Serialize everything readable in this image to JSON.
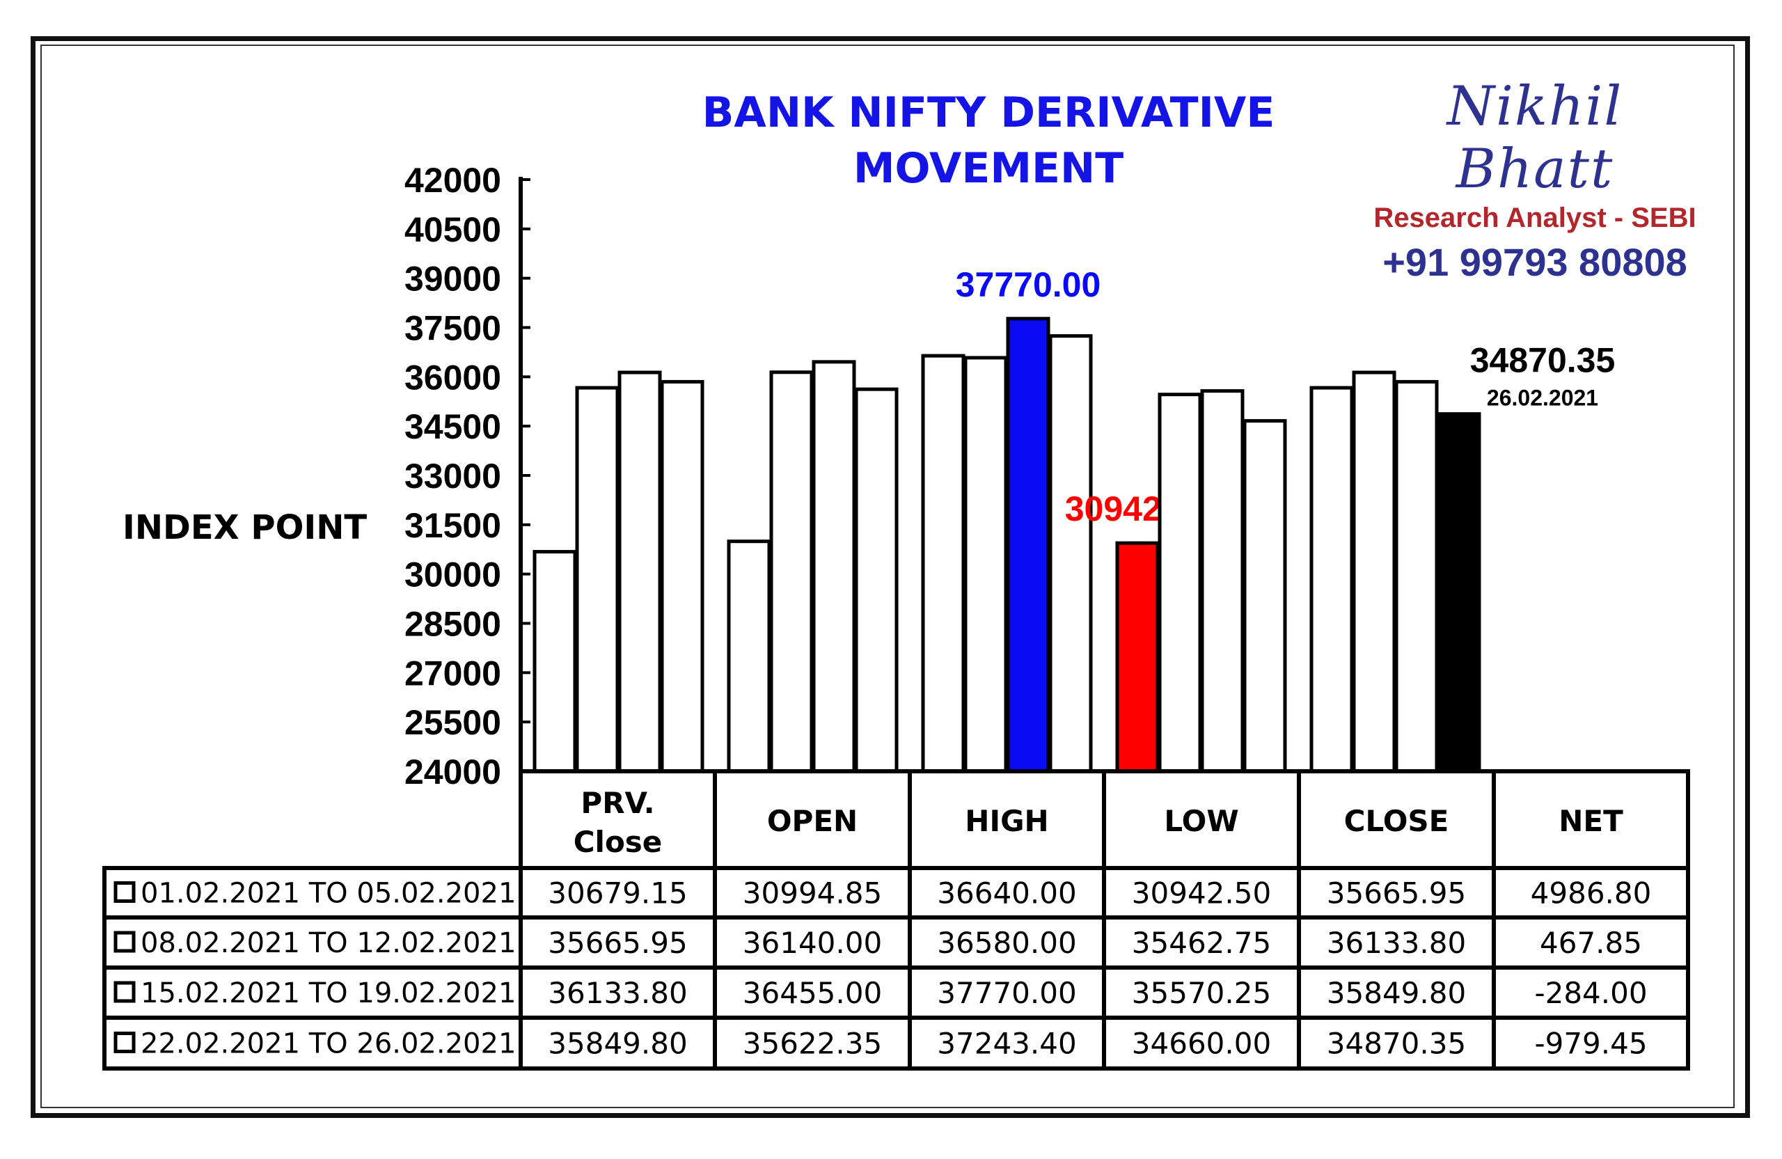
{
  "header": {
    "title_line1": "BANK NIFTY DERIVATIVE",
    "title_line2": "MOVEMENT"
  },
  "brand": {
    "name": "Nikhil Bhatt",
    "role": "Research Analyst - SEBI",
    "phone": "+91 99793 80808"
  },
  "colors": {
    "highlight_high": "#0a0af5",
    "highlight_low": "#ff0000",
    "highlight_close": "#000000",
    "bar_default": "#ffffff",
    "title": "#1414e6"
  },
  "chart_data": {
    "type": "bar",
    "title": "BANK NIFTY DERIVATIVE MOVEMENT",
    "ylabel": "INDEX POINT",
    "ylim": [
      24000,
      42000
    ],
    "yticks": [
      "42000",
      "40500",
      "39000",
      "37500",
      "36000",
      "34500",
      "33000",
      "31500",
      "30000",
      "28500",
      "27000",
      "25500",
      "24000"
    ],
    "categories": [
      "PRV.\nClose",
      "OPEN",
      "HIGH",
      "LOW",
      "CLOSE"
    ],
    "series": [
      {
        "name": "01.02.2021 TO 05.02.2021",
        "values": [
          30679.15,
          30994.85,
          36640.0,
          30942.5,
          35665.95
        ]
      },
      {
        "name": "08.02.2021 TO 12.02.2021",
        "values": [
          35665.95,
          36140.0,
          36580.0,
          35462.75,
          36133.8
        ]
      },
      {
        "name": "15.02.2021 TO 19.02.2021",
        "values": [
          36133.8,
          36455.0,
          37770.0,
          35570.25,
          35849.8
        ]
      },
      {
        "name": "22.02.2021 TO 26.02.2021",
        "values": [
          35849.8,
          35622.35,
          37243.4,
          34660.0,
          34870.35
        ]
      }
    ],
    "highlights": [
      {
        "category_index": 2,
        "series_index": 2,
        "color": "#0a0af5",
        "label": "37770.00",
        "label_color": "#0a0af5"
      },
      {
        "category_index": 3,
        "series_index": 0,
        "color": "#ff0000",
        "label": "30942.50",
        "label_color": "#ff0000"
      },
      {
        "category_index": 4,
        "series_index": 3,
        "color": "#000000",
        "label": "34870.35",
        "label_color": "#000000",
        "sublabel": "26.02.2021"
      }
    ],
    "table": {
      "columns": [
        "PRV.\nClose",
        "OPEN",
        "HIGH",
        "LOW",
        "CLOSE",
        "NET"
      ],
      "rows": [
        {
          "label": "01.02.2021 TO 05.02.2021",
          "cells": [
            "30679.15",
            "30994.85",
            "36640.00",
            "30942.50",
            "35665.95",
            "4986.80"
          ]
        },
        {
          "label": "08.02.2021 TO 12.02.2021",
          "cells": [
            "35665.95",
            "36140.00",
            "36580.00",
            "35462.75",
            "36133.80",
            "467.85"
          ]
        },
        {
          "label": "15.02.2021 TO 19.02.2021",
          "cells": [
            "36133.80",
            "36455.00",
            "37770.00",
            "35570.25",
            "35849.80",
            "-284.00"
          ]
        },
        {
          "label": "22.02.2021 TO 26.02.2021",
          "cells": [
            "35849.80",
            "35622.35",
            "37243.40",
            "34660.00",
            "34870.35",
            "-979.45"
          ]
        }
      ]
    }
  }
}
